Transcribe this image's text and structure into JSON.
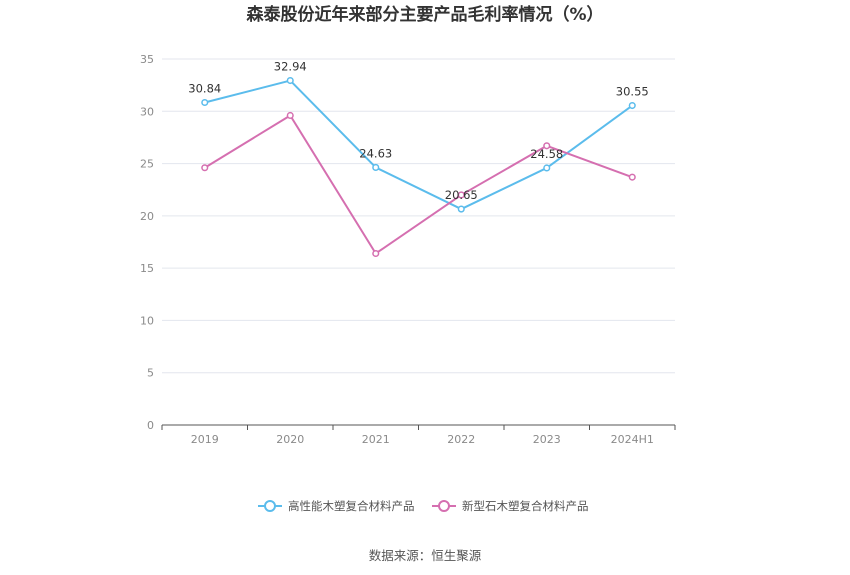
{
  "chart_data": {
    "type": "line",
    "title": "森泰股份近年来部分主要产品毛利率情况（%）",
    "categories": [
      "2019",
      "2020",
      "2021",
      "2022",
      "2023",
      "2024H1"
    ],
    "ylim": [
      0,
      35
    ],
    "yticks": [
      0,
      5,
      10,
      15,
      20,
      25,
      30,
      35
    ],
    "grid": true,
    "legend_position": "bottom",
    "series": [
      {
        "name": "高性能木塑复合材料产品",
        "color": "#5bbcec",
        "values": [
          30.84,
          32.94,
          24.63,
          20.65,
          24.58,
          30.55
        ],
        "labels": [
          "30.84",
          "32.94",
          "24.63",
          "20.65",
          "24.58",
          "30.55"
        ]
      },
      {
        "name": "新型石木塑复合材料产品",
        "color": "#d56fb0",
        "values": [
          24.6,
          29.6,
          16.4,
          22.0,
          26.7,
          23.7
        ],
        "labels": []
      }
    ]
  },
  "source": "数据来源：恒生聚源"
}
